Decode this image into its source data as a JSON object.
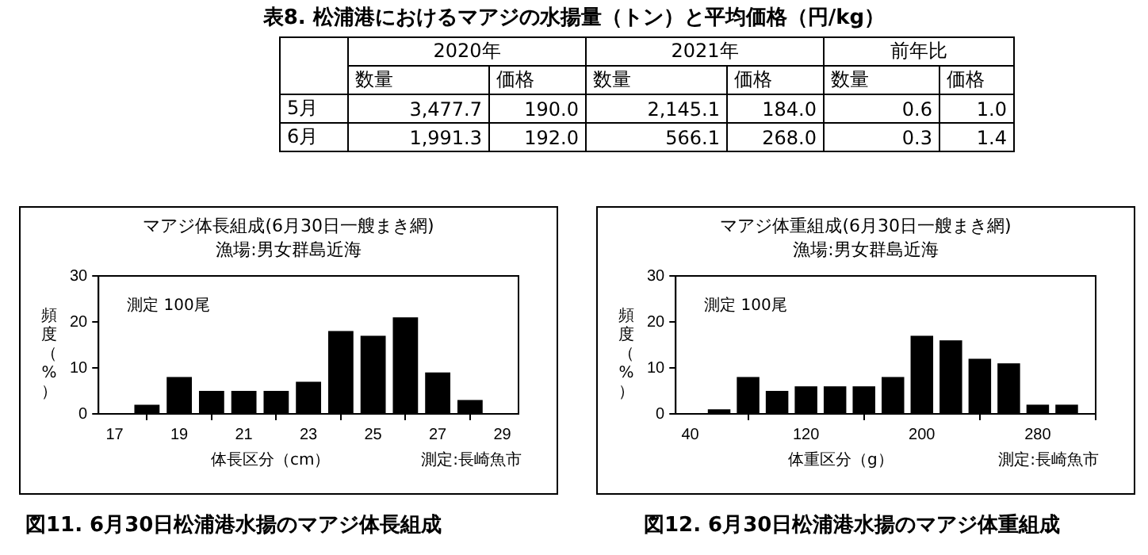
{
  "chart_data": [
    {
      "type": "other",
      "title": "表8. 松浦港におけるマアジの水揚量（トン）と平均価格（円/kg）",
      "annotations": [
        "2020年",
        "2021年",
        "前年比",
        "数量",
        "価格",
        "数量",
        "価格",
        "数量",
        "価格",
        "5月",
        "3,477.7",
        "190.0",
        "2,145.1",
        "184.0",
        "0.6",
        "1.0",
        "6月",
        "1,991.3",
        "192.0",
        "566.1",
        "268.0",
        "0.3",
        "1.4"
      ]
    },
    {
      "type": "bar",
      "title": "マアジ体長組成(6月30日一艘まき網)",
      "subtitle": "漁場:男女群島近海",
      "xlabel": "体長区分（cm）",
      "ylabel": "頻度（%）",
      "x": [
        18,
        19,
        20,
        21,
        22,
        23,
        24,
        25,
        26,
        27,
        28
      ],
      "values": [
        2,
        8,
        5,
        5,
        5,
        7,
        18,
        17,
        21,
        9,
        3
      ],
      "color": "#000000",
      "xlim": [
        16.5,
        29.5
      ],
      "xticks": [
        17,
        19,
        21,
        23,
        25,
        27,
        29
      ],
      "ylim": [
        0,
        30
      ],
      "yticks": [
        0,
        10,
        20,
        30
      ],
      "grid": false,
      "legend": false,
      "annotations": [
        "測定 100尾",
        "測定:長崎魚市",
        "図11. 6月30日松浦港水揚のマアジ体長組成"
      ]
    },
    {
      "type": "bar",
      "title": "マアジ体重組成(6月30日一艘まき網)",
      "subtitle": "漁場:男女群島近海",
      "xlabel": "体重区分（g）",
      "ylabel": "頻度（%）",
      "x": [
        60,
        80,
        100,
        120,
        140,
        160,
        180,
        200,
        220,
        240,
        260,
        280,
        300
      ],
      "values": [
        1,
        8,
        5,
        6,
        6,
        6,
        8,
        17,
        16,
        12,
        11,
        2,
        2
      ],
      "color": "#000000",
      "xlim": [
        30,
        320
      ],
      "xticks": [
        40,
        120,
        200,
        280
      ],
      "ylim": [
        0,
        30
      ],
      "yticks": [
        0,
        10,
        20,
        30
      ],
      "grid": false,
      "legend": false,
      "annotations": [
        "測定 100尾",
        "測定:長崎魚市",
        "図12. 6月30日松浦港水揚のマアジ体重組成"
      ]
    }
  ]
}
